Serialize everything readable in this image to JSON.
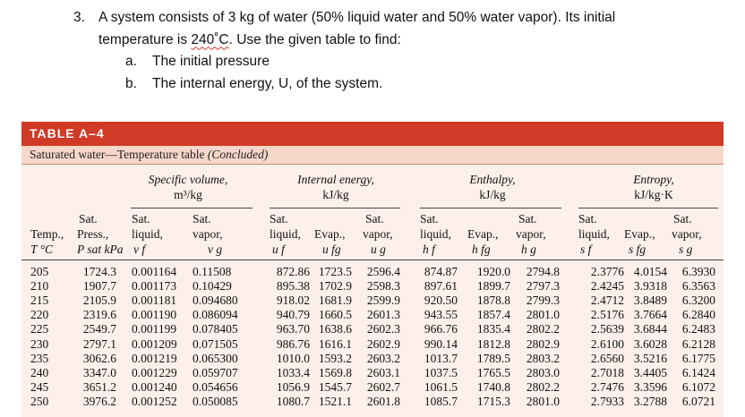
{
  "question": {
    "number": "3.",
    "line1": "A system consists of 3 kg of water (50% liquid water and 50% water vapor).  Its initial",
    "line2_pre": "temperature is ",
    "line2_temp": "240˚C",
    "line2_post": ".  Use the given table to find:",
    "items": [
      {
        "label": "a.",
        "text": "The initial pressure"
      },
      {
        "label": "b.",
        "text": "The internal energy, U, of the system."
      }
    ]
  },
  "table": {
    "banner": "TABLE A–4",
    "caption": "Saturated water—Temperature table",
    "caption_note": "(Concluded)",
    "groups": [
      {
        "name": "Specific volume,",
        "unit": "m³/kg"
      },
      {
        "name": "Internal energy,",
        "unit": "kJ/kg"
      },
      {
        "name": "Enthalpy,",
        "unit": "kJ/kg"
      },
      {
        "name": "Entropy,",
        "unit": "kJ/kg·K"
      }
    ],
    "columns": [
      {
        "h1": "",
        "h2": "Temp.,",
        "h3": "T °C"
      },
      {
        "h1": "Sat.",
        "h2": "Press.,",
        "h3": "P sat kPa"
      },
      {
        "h1": "Sat.",
        "h2": "liquid,",
        "h3": "v f"
      },
      {
        "h1": "Sat.",
        "h2": "vapor,",
        "h3": "v g"
      },
      {
        "h1": "Sat.",
        "h2": "liquid,",
        "h3": "u f"
      },
      {
        "h1": "",
        "h2": "Evap.,",
        "h3": "u fg"
      },
      {
        "h1": "Sat.",
        "h2": "vapor,",
        "h3": "u g"
      },
      {
        "h1": "Sat.",
        "h2": "liquid,",
        "h3": "h f"
      },
      {
        "h1": "",
        "h2": "Evap.,",
        "h3": "h fg"
      },
      {
        "h1": "Sat.",
        "h2": "vapor,",
        "h3": "h g"
      },
      {
        "h1": "Sat.",
        "h2": "liquid,",
        "h3": "s f"
      },
      {
        "h1": "",
        "h2": "Evap.,",
        "h3": "s fg"
      },
      {
        "h1": "Sat.",
        "h2": "vapor,",
        "h3": "s g"
      }
    ],
    "rows": [
      [
        "205",
        "1724.3",
        "0.001164",
        "0.11508",
        "872.86",
        "1723.5",
        "2596.4",
        "874.87",
        "1920.0",
        "2794.8",
        "2.3776",
        "4.0154",
        "6.3930"
      ],
      [
        "210",
        "1907.7",
        "0.001173",
        "0.10429",
        "895.38",
        "1702.9",
        "2598.3",
        "897.61",
        "1899.7",
        "2797.3",
        "2.4245",
        "3.9318",
        "6.3563"
      ],
      [
        "215",
        "2105.9",
        "0.001181",
        "0.094680",
        "918.02",
        "1681.9",
        "2599.9",
        "920.50",
        "1878.8",
        "2799.3",
        "2.4712",
        "3.8489",
        "6.3200"
      ],
      [
        "220",
        "2319.6",
        "0.001190",
        "0.086094",
        "940.79",
        "1660.5",
        "2601.3",
        "943.55",
        "1857.4",
        "2801.0",
        "2.5176",
        "3.7664",
        "6.2840"
      ],
      [
        "225",
        "2549.7",
        "0.001199",
        "0.078405",
        "963.70",
        "1638.6",
        "2602.3",
        "966.76",
        "1835.4",
        "2802.2",
        "2.5639",
        "3.6844",
        "6.2483"
      ],
      [
        "230",
        "2797.1",
        "0.001209",
        "0.071505",
        "986.76",
        "1616.1",
        "2602.9",
        "990.14",
        "1812.8",
        "2802.9",
        "2.6100",
        "3.6028",
        "6.2128"
      ],
      [
        "235",
        "3062.6",
        "0.001219",
        "0.065300",
        "1010.0",
        "1593.2",
        "2603.2",
        "1013.7",
        "1789.5",
        "2803.2",
        "2.6560",
        "3.5216",
        "6.1775"
      ],
      [
        "240",
        "3347.0",
        "0.001229",
        "0.059707",
        "1033.4",
        "1569.8",
        "2603.1",
        "1037.5",
        "1765.5",
        "2803.0",
        "2.7018",
        "3.4405",
        "6.1424"
      ],
      [
        "245",
        "3651.2",
        "0.001240",
        "0.054656",
        "1056.9",
        "1545.7",
        "2602.7",
        "1061.5",
        "1740.8",
        "2802.2",
        "2.7476",
        "3.3596",
        "6.1072"
      ],
      [
        "250",
        "3976.2",
        "0.001252",
        "0.050085",
        "1080.7",
        "1521.1",
        "2601.8",
        "1085.7",
        "1715.3",
        "2801.0",
        "2.7933",
        "3.2788",
        "6.0721"
      ]
    ]
  }
}
